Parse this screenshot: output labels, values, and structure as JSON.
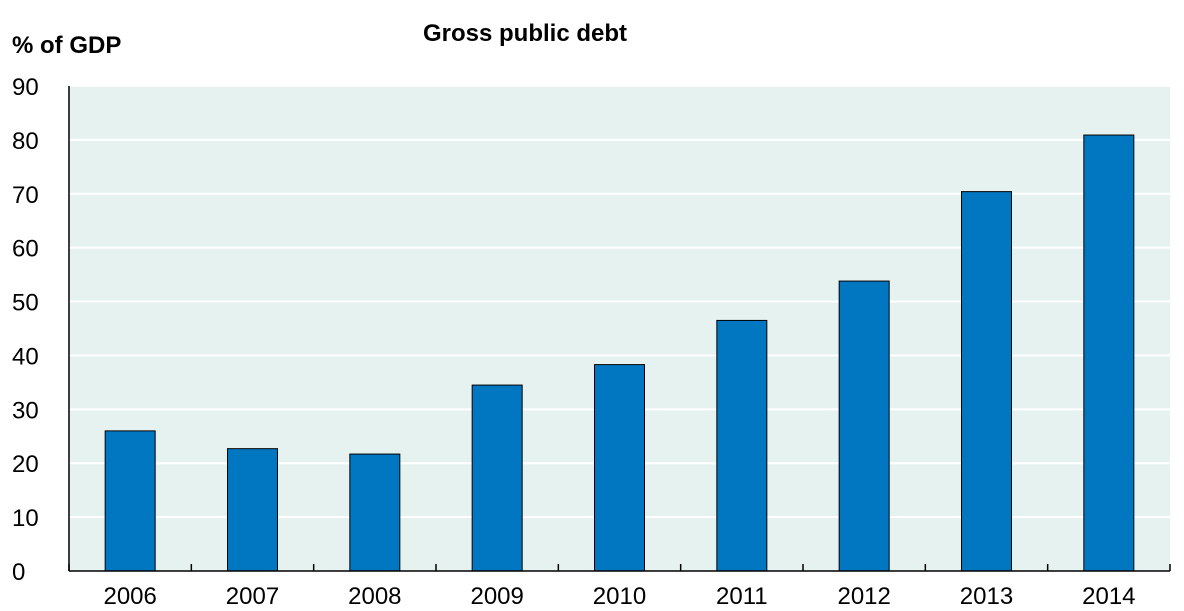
{
  "chart_data": {
    "type": "bar",
    "title": "Gross public debt",
    "ylabel": "% of GDP",
    "xlabel": "",
    "categories": [
      "2006",
      "2007",
      "2008",
      "2009",
      "2010",
      "2011",
      "2012",
      "2013",
      "2014"
    ],
    "values": [
      26.0,
      22.7,
      21.7,
      34.5,
      38.3,
      46.5,
      53.8,
      70.4,
      80.9
    ],
    "ylim": [
      0,
      90
    ],
    "yticks": [
      0,
      10,
      20,
      30,
      40,
      50,
      60,
      70,
      80,
      90
    ],
    "grid": true,
    "legend": "none",
    "colors": {
      "bar": "#0077c0",
      "bar_edge": "#000000",
      "plot_background": "#e6f2f0",
      "grid": "#ffffff",
      "axis": "#000000"
    }
  }
}
